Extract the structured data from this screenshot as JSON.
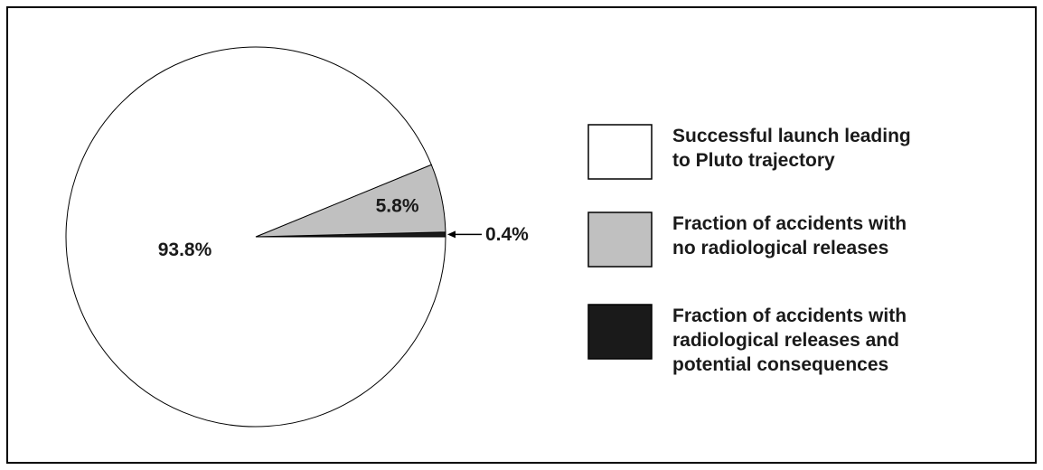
{
  "chart_data": {
    "type": "pie",
    "categories": [
      "Successful launch leading\nto Pluto trajectory",
      "Fraction of accidents with\nno radiological releases",
      "Fraction of accidents with\nradiological releases and\npotential consequences"
    ],
    "values": [
      93.8,
      5.8,
      0.4
    ],
    "value_labels": [
      "93.8%",
      "5.8%",
      "0.4%"
    ],
    "colors": [
      "#ffffff",
      "#c0c0c0",
      "#1a1a1a"
    ],
    "legend": "right"
  }
}
